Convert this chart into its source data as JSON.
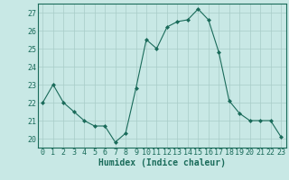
{
  "x": [
    0,
    1,
    2,
    3,
    4,
    5,
    6,
    7,
    8,
    9,
    10,
    11,
    12,
    13,
    14,
    15,
    16,
    17,
    18,
    19,
    20,
    21,
    22,
    23
  ],
  "y": [
    22,
    23,
    22,
    21.5,
    21,
    20.7,
    20.7,
    19.8,
    20.3,
    22.8,
    25.5,
    25,
    26.2,
    26.5,
    26.6,
    27.2,
    26.6,
    24.8,
    22.1,
    21.4,
    21,
    21,
    21,
    20.1
  ],
  "line_color": "#1a6b5a",
  "marker": "D",
  "marker_size": 2,
  "bg_color": "#c8e8e5",
  "grid_color": "#a8ccc8",
  "axis_color": "#1a6b5a",
  "xlabel": "Humidex (Indice chaleur)",
  "ylim": [
    19.5,
    27.5
  ],
  "xlim": [
    -0.5,
    23.5
  ],
  "yticks": [
    20,
    21,
    22,
    23,
    24,
    25,
    26,
    27
  ],
  "xticks": [
    0,
    1,
    2,
    3,
    4,
    5,
    6,
    7,
    8,
    9,
    10,
    11,
    12,
    13,
    14,
    15,
    16,
    17,
    18,
    19,
    20,
    21,
    22,
    23
  ],
  "font_color": "#1a6b5a",
  "tick_fontsize": 6,
  "xlabel_fontsize": 7
}
